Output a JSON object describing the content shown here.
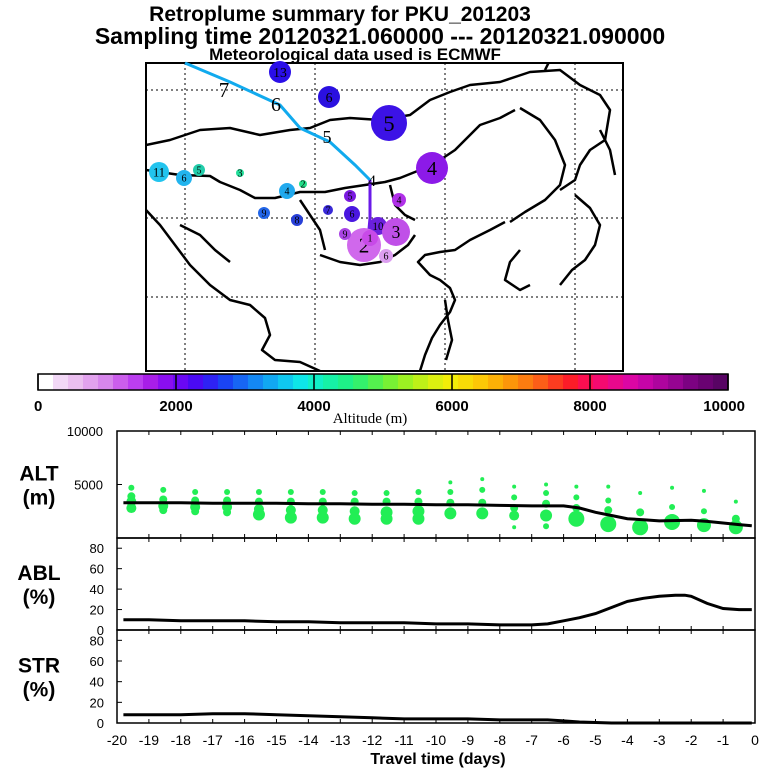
{
  "title": {
    "line1": "Retroplume summary for PKU_201203",
    "line2": "Sampling time   20120321.060000 --- 20120321.090000",
    "line3": "Meteorological data used is ECMWF"
  },
  "colors": {
    "line": "#000000",
    "alt_points": "#22ee55",
    "track": "#11aaee"
  },
  "map": {
    "plume_track": [
      {
        "label": "7",
        "color": "#000000"
      },
      {
        "label": "6",
        "color": "#000000"
      },
      {
        "label": "5",
        "color": "#000000"
      },
      {
        "label": "4",
        "color": "#000000"
      }
    ],
    "clusters": [
      {
        "label": "13",
        "color": "#2a0ee8"
      },
      {
        "label": "6",
        "color": "#2a10e0"
      },
      {
        "label": "5",
        "color": "#3c12e6"
      },
      {
        "label": "4",
        "color": "#8c1ae8"
      },
      {
        "label": "11",
        "color": "#22c4ee"
      },
      {
        "label": "6",
        "color": "#22b4ee"
      },
      {
        "label": "5",
        "color": "#22ccaa"
      },
      {
        "label": "3",
        "color": "#22dd99"
      },
      {
        "label": "4",
        "color": "#22aaee"
      },
      {
        "label": "2",
        "color": "#22dd88"
      },
      {
        "label": "9",
        "color": "#2266e8"
      },
      {
        "label": "8",
        "color": "#2840d8"
      },
      {
        "label": "7",
        "color": "#3a2ad8"
      },
      {
        "label": "6",
        "color": "#4a18e0"
      },
      {
        "label": "5",
        "color": "#7a1ae0"
      },
      {
        "label": "4",
        "color": "#b030e8"
      },
      {
        "label": "10",
        "color": "#6a20dc"
      },
      {
        "label": "3",
        "color": "#c050e8"
      },
      {
        "label": "2",
        "color": "#d068ec"
      },
      {
        "label": "1",
        "color": "#c84ae8"
      },
      {
        "label": "9",
        "color": "#aa44e4"
      },
      {
        "label": "6",
        "color": "#dc9ef0"
      }
    ]
  },
  "colorbar": {
    "label": "Altitude (m)",
    "ticks": [
      "0",
      "2000",
      "4000",
      "6000",
      "8000",
      "10000"
    ],
    "colors": [
      "#ffffff",
      "#f2d8f6",
      "#ebbff0",
      "#e2a2ee",
      "#d786ec",
      "#cb5eec",
      "#bb3ef0",
      "#a81ee8",
      "#8a0ef0",
      "#6a08f4",
      "#4a0af4",
      "#2e22f4",
      "#1a44f4",
      "#1766f4",
      "#1488f4",
      "#11a8f2",
      "#0fc8f0",
      "#0ee6e8",
      "#11f0c6",
      "#16f2a6",
      "#1ef288",
      "#34f26c",
      "#54f24e",
      "#78f234",
      "#9cf222",
      "#bef018",
      "#dcf010",
      "#f2ee08",
      "#f8dc06",
      "#fcc806",
      "#fcb006",
      "#fc960a",
      "#fc7c10",
      "#fc5e18",
      "#fc3c20",
      "#fc1c28",
      "#fc0e50",
      "#f40a70",
      "#e8088c",
      "#dc06a4",
      "#c604a8",
      "#ae049e",
      "#960492",
      "#7c0282",
      "#6a0272",
      "#580464"
    ]
  },
  "chart_data": [
    {
      "type": "scatter",
      "name": "ALT",
      "panel_label_line1": "ALT",
      "panel_label_line2": "(m)",
      "ylim": [
        0,
        10000
      ],
      "yticks": [
        "10000",
        "5000"
      ],
      "line_x": [
        -19.8,
        -19,
        -18,
        -17,
        -16,
        -15,
        -14,
        -13,
        -12,
        -11,
        -10,
        -9,
        -8,
        -7,
        -6,
        -5.5,
        -5,
        -4.5,
        -4,
        -3.5,
        -3,
        -2,
        -1.5,
        -1,
        -0.5,
        -0.1
      ],
      "line_y": [
        3300,
        3300,
        3300,
        3250,
        3250,
        3250,
        3200,
        3200,
        3150,
        3150,
        3100,
        3100,
        3050,
        3000,
        3000,
        2800,
        2400,
        2100,
        1800,
        1700,
        1600,
        1650,
        1550,
        1400,
        1250,
        1150
      ],
      "points": [
        {
          "x": -19.55,
          "y": 4700,
          "s": 3
        },
        {
          "x": -19.55,
          "y": 3900,
          "s": 4
        },
        {
          "x": -19.55,
          "y": 3400,
          "s": 5
        },
        {
          "x": -19.55,
          "y": 2800,
          "s": 5
        },
        {
          "x": -18.55,
          "y": 4500,
          "s": 3
        },
        {
          "x": -18.55,
          "y": 3600,
          "s": 4
        },
        {
          "x": -18.55,
          "y": 3000,
          "s": 5
        },
        {
          "x": -18.55,
          "y": 2600,
          "s": 4
        },
        {
          "x": -17.55,
          "y": 4300,
          "s": 3
        },
        {
          "x": -17.55,
          "y": 3500,
          "s": 4
        },
        {
          "x": -17.55,
          "y": 2900,
          "s": 5
        },
        {
          "x": -17.55,
          "y": 2500,
          "s": 4
        },
        {
          "x": -16.55,
          "y": 4300,
          "s": 3
        },
        {
          "x": -16.55,
          "y": 3500,
          "s": 4
        },
        {
          "x": -16.55,
          "y": 2900,
          "s": 5
        },
        {
          "x": -16.55,
          "y": 2400,
          "s": 4
        },
        {
          "x": -15.55,
          "y": 4300,
          "s": 3
        },
        {
          "x": -15.55,
          "y": 3400,
          "s": 4
        },
        {
          "x": -15.55,
          "y": 2700,
          "s": 5
        },
        {
          "x": -15.55,
          "y": 2200,
          "s": 6
        },
        {
          "x": -14.55,
          "y": 4300,
          "s": 3
        },
        {
          "x": -14.55,
          "y": 3400,
          "s": 4
        },
        {
          "x": -14.55,
          "y": 2600,
          "s": 5
        },
        {
          "x": -14.55,
          "y": 1900,
          "s": 6
        },
        {
          "x": -13.55,
          "y": 4300,
          "s": 3
        },
        {
          "x": -13.55,
          "y": 3400,
          "s": 4
        },
        {
          "x": -13.55,
          "y": 2600,
          "s": 5
        },
        {
          "x": -13.55,
          "y": 1900,
          "s": 6
        },
        {
          "x": -12.55,
          "y": 4200,
          "s": 3
        },
        {
          "x": -12.55,
          "y": 3400,
          "s": 4
        },
        {
          "x": -12.55,
          "y": 2500,
          "s": 5
        },
        {
          "x": -12.55,
          "y": 1800,
          "s": 6
        },
        {
          "x": -11.55,
          "y": 4200,
          "s": 3
        },
        {
          "x": -11.55,
          "y": 3400,
          "s": 4
        },
        {
          "x": -11.55,
          "y": 2400,
          "s": 6
        },
        {
          "x": -11.55,
          "y": 1800,
          "s": 6
        },
        {
          "x": -10.55,
          "y": 4300,
          "s": 3
        },
        {
          "x": -10.55,
          "y": 3400,
          "s": 4
        },
        {
          "x": -10.55,
          "y": 2500,
          "s": 6
        },
        {
          "x": -10.55,
          "y": 1800,
          "s": 6
        },
        {
          "x": -9.55,
          "y": 5200,
          "s": 2
        },
        {
          "x": -9.55,
          "y": 4300,
          "s": 3
        },
        {
          "x": -9.55,
          "y": 3300,
          "s": 4
        },
        {
          "x": -9.55,
          "y": 2300,
          "s": 6
        },
        {
          "x": -8.55,
          "y": 5500,
          "s": 2
        },
        {
          "x": -8.55,
          "y": 4500,
          "s": 3
        },
        {
          "x": -8.55,
          "y": 3300,
          "s": 4
        },
        {
          "x": -8.55,
          "y": 2300,
          "s": 6
        },
        {
          "x": -7.55,
          "y": 4800,
          "s": 2
        },
        {
          "x": -7.55,
          "y": 3800,
          "s": 3
        },
        {
          "x": -7.55,
          "y": 2800,
          "s": 4
        },
        {
          "x": -7.55,
          "y": 2100,
          "s": 5
        },
        {
          "x": -7.55,
          "y": 1000,
          "s": 2
        },
        {
          "x": -6.55,
          "y": 5000,
          "s": 2
        },
        {
          "x": -6.55,
          "y": 4200,
          "s": 3
        },
        {
          "x": -6.55,
          "y": 3200,
          "s": 4
        },
        {
          "x": -6.55,
          "y": 2100,
          "s": 6
        },
        {
          "x": -6.55,
          "y": 1100,
          "s": 3
        },
        {
          "x": -5.6,
          "y": 4800,
          "s": 2
        },
        {
          "x": -5.6,
          "y": 3800,
          "s": 3
        },
        {
          "x": -5.6,
          "y": 2800,
          "s": 4
        },
        {
          "x": -5.6,
          "y": 1800,
          "s": 8
        },
        {
          "x": -4.6,
          "y": 4800,
          "s": 2
        },
        {
          "x": -4.6,
          "y": 3500,
          "s": 3
        },
        {
          "x": -4.6,
          "y": 2600,
          "s": 4
        },
        {
          "x": -4.6,
          "y": 1300,
          "s": 8
        },
        {
          "x": -3.6,
          "y": 4200,
          "s": 2
        },
        {
          "x": -3.6,
          "y": 2400,
          "s": 4
        },
        {
          "x": -3.6,
          "y": 1000,
          "s": 8
        },
        {
          "x": -2.6,
          "y": 4700,
          "s": 2
        },
        {
          "x": -2.6,
          "y": 2900,
          "s": 3
        },
        {
          "x": -2.6,
          "y": 1500,
          "s": 8
        },
        {
          "x": -1.6,
          "y": 4400,
          "s": 2
        },
        {
          "x": -1.6,
          "y": 2500,
          "s": 3
        },
        {
          "x": -1.6,
          "y": 1200,
          "s": 7
        },
        {
          "x": -0.6,
          "y": 3400,
          "s": 2
        },
        {
          "x": -0.6,
          "y": 1800,
          "s": 4
        },
        {
          "x": -0.6,
          "y": 1000,
          "s": 7
        }
      ]
    },
    {
      "type": "line",
      "name": "ABL",
      "panel_label_line1": "ABL",
      "panel_label_line2": "(%)",
      "ylim": [
        0,
        90
      ],
      "yticks": [
        "80",
        "60",
        "40",
        "20",
        "0"
      ],
      "x": [
        -19.8,
        -19,
        -18,
        -17,
        -16,
        -15,
        -14,
        -13,
        -12,
        -11,
        -10,
        -9,
        -8,
        -7,
        -6.5,
        -6,
        -5.5,
        -5,
        -4.5,
        -4,
        -3.5,
        -3,
        -2.5,
        -2.2,
        -2,
        -1.5,
        -1,
        -0.5,
        -0.1
      ],
      "y": [
        10,
        10,
        9,
        9,
        9,
        8,
        8,
        7,
        7,
        7,
        6,
        6,
        5,
        5,
        6,
        9,
        12,
        16,
        22,
        28,
        31,
        33,
        34,
        34,
        33,
        26,
        21,
        20,
        20
      ]
    },
    {
      "type": "line",
      "name": "STR",
      "panel_label_line1": "STR",
      "panel_label_line2": "(%)",
      "ylim": [
        0,
        90
      ],
      "yticks": [
        "80",
        "60",
        "40",
        "20",
        "0"
      ],
      "x": [
        -19.8,
        -19,
        -18,
        -17,
        -16,
        -15,
        -14,
        -13,
        -12,
        -11,
        -10,
        -9,
        -8,
        -7,
        -6.5,
        -6,
        -5.5,
        -5,
        -4.5,
        -4,
        -3,
        -2,
        -1,
        -0.1
      ],
      "y": [
        8,
        8,
        8,
        9,
        9,
        8,
        7,
        6,
        5,
        4,
        4,
        4,
        3,
        3,
        3,
        2,
        1,
        0.5,
        0,
        0,
        0,
        0,
        0,
        0
      ],
      "xlabel": "Travel time (days)",
      "xticks": [
        "-20",
        "-19",
        "-18",
        "-17",
        "-16",
        "-15",
        "-14",
        "-13",
        "-12",
        "-11",
        "-10",
        "-9",
        "-8",
        "-7",
        "-6",
        "-5",
        "-4",
        "-3",
        "-2",
        "-1",
        "0"
      ]
    }
  ]
}
